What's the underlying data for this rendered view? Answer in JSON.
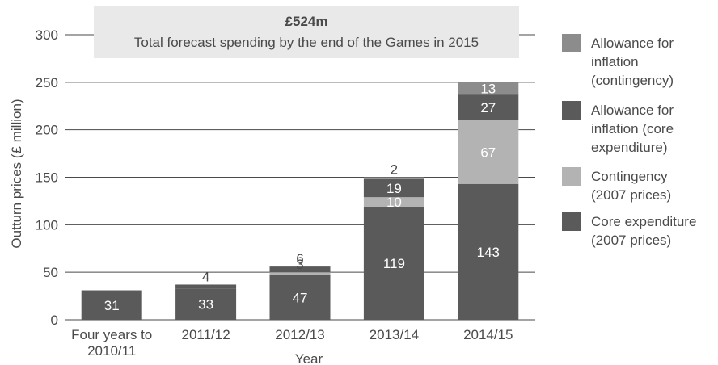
{
  "chart_data": {
    "type": "bar",
    "stacked": true,
    "annotation": {
      "headline": "£524m",
      "text": "Total forecast spending by the end of the Games in 2015"
    },
    "xlabel": "Year",
    "ylabel": "Outturn prices (£ million)",
    "ylim": [
      0,
      300
    ],
    "yticks": [
      "0",
      "50",
      "100",
      "150",
      "200",
      "250",
      "300"
    ],
    "categories": [
      "Four years to\n2010/11",
      "2011/12",
      "2012/13",
      "2013/14",
      "2014/15"
    ],
    "legend_position": "right",
    "series": [
      {
        "name": "Core expenditure (2007 prices)",
        "color": "#5a5a5a",
        "values": [
          31,
          33,
          47,
          119,
          143
        ],
        "labels": [
          "31",
          "33",
          "47",
          "119",
          "143"
        ]
      },
      {
        "name": "Contingency (2007 prices)",
        "color": "#b3b3b3",
        "values": [
          0,
          0,
          3,
          10,
          67
        ],
        "labels": [
          "",
          "",
          "3",
          "10",
          "67"
        ]
      },
      {
        "name": "Allowance for inflation (core expenditure)",
        "color": "#5a5a5a",
        "values": [
          0,
          4,
          6,
          19,
          27
        ],
        "labels": [
          "",
          "4",
          "6",
          "19",
          "27"
        ]
      },
      {
        "name": "Allowance for inflation (contingency)",
        "color": "#8c8c8c",
        "values": [
          0,
          0,
          0,
          2,
          13
        ],
        "labels": [
          "",
          "",
          "",
          "2",
          "13"
        ]
      }
    ],
    "legend": [
      {
        "lines": [
          "Allowance for",
          "inflation",
          "(contingency)"
        ],
        "color": "#8c8c8c"
      },
      {
        "lines": [
          "Allowance for",
          "inflation (core",
          "expenditure)"
        ],
        "color": "#5a5a5a"
      },
      {
        "lines": [
          "Contingency",
          "(2007 prices)"
        ],
        "color": "#b3b3b3"
      },
      {
        "lines": [
          "Core expenditure",
          "(2007 prices)"
        ],
        "color": "#5a5a5a"
      }
    ]
  }
}
